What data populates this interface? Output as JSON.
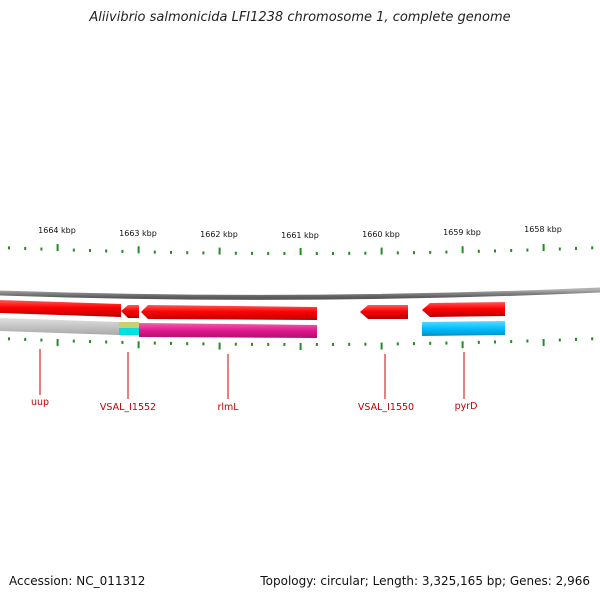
{
  "title": "Aliivibrio salmonicida LFI1238 chromosome 1, complete genome",
  "footer": {
    "accession": "Accession: NC_011312",
    "summary": "Topology: circular; Length: 3,325,165 bp; Genes: 2,966"
  },
  "scale_labels": [
    "1664 kbp",
    "1663 kbp",
    "1662 kbp",
    "1661 kbp",
    "1660 kbp",
    "1659 kbp",
    "1658 kbp"
  ],
  "genes": [
    {
      "name": "uup",
      "strand": "forward"
    },
    {
      "name": "VSAL_I1552",
      "strand": "reverse"
    },
    {
      "name": "rlmL",
      "strand": "reverse"
    },
    {
      "name": "VSAL_I1550",
      "strand": "reverse"
    },
    {
      "name": "pyrD",
      "strand": "reverse"
    }
  ],
  "colors": {
    "cds_track": "#ff0000",
    "gene_track_uup": "#c0c0c0",
    "gene_track_rlmL": "#e0188c",
    "gene_track_pyrD": "#00bfff",
    "gene_track_VSAL_I1552": "#00e0e0",
    "ticks": "#228b22",
    "backbone": "#808080",
    "labels": "#c00000"
  }
}
